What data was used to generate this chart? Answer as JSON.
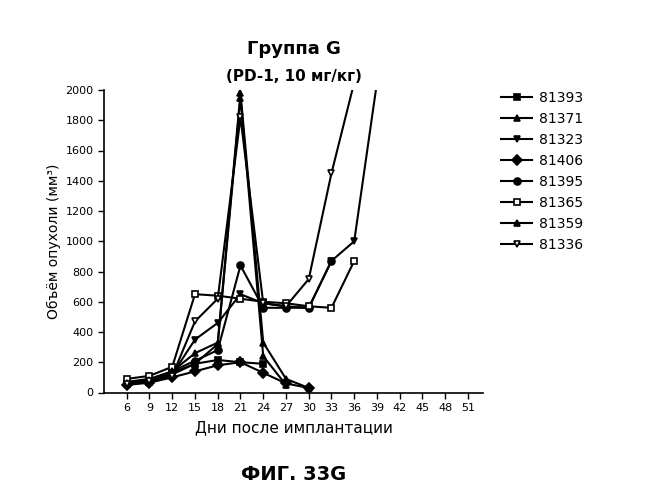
{
  "title_line1": "Группа G",
  "title_line2": "(PD-1, 10 мг/кг)",
  "xlabel": "Дни после имплантации",
  "ylabel": "Объём опухоли (мм³)",
  "caption": "ФИГ. 33G",
  "xticks": [
    6,
    9,
    12,
    15,
    18,
    21,
    24,
    27,
    30,
    33,
    36,
    39,
    42,
    45,
    48,
    51
  ],
  "ylim": [
    0,
    2000
  ],
  "yticks": [
    0,
    200,
    400,
    600,
    800,
    1000,
    1200,
    1400,
    1600,
    1800,
    2000
  ],
  "series": [
    {
      "label": "81393",
      "marker": "s",
      "fillstyle": "full",
      "x": [
        6,
        9,
        12,
        15,
        18,
        21,
        24
      ],
      "y": [
        55,
        70,
        120,
        190,
        215,
        200,
        190
      ]
    },
    {
      "label": "81371",
      "marker": "^",
      "fillstyle": "full",
      "x": [
        6,
        9,
        12,
        15,
        18,
        21,
        24,
        27
      ],
      "y": [
        60,
        80,
        130,
        190,
        320,
        1950,
        240,
        50
      ]
    },
    {
      "label": "81323",
      "marker": "v",
      "fillstyle": "full",
      "x": [
        6,
        9,
        12,
        15,
        18,
        21,
        24,
        27,
        30,
        33,
        36,
        39
      ],
      "y": [
        65,
        85,
        120,
        350,
        460,
        650,
        590,
        570,
        560,
        870,
        1000,
        2050
      ]
    },
    {
      "label": "81406",
      "marker": "D",
      "fillstyle": "full",
      "x": [
        6,
        9,
        12,
        15,
        18,
        21,
        24,
        27,
        30
      ],
      "y": [
        50,
        65,
        100,
        140,
        180,
        200,
        130,
        60,
        30
      ]
    },
    {
      "label": "81395",
      "marker": "o",
      "fillstyle": "full",
      "x": [
        6,
        9,
        12,
        15,
        18,
        21,
        24,
        27,
        30,
        33
      ],
      "y": [
        70,
        90,
        140,
        210,
        280,
        840,
        560,
        560,
        560,
        870
      ]
    },
    {
      "label": "81365",
      "marker": "s",
      "fillstyle": "none",
      "x": [
        6,
        9,
        12,
        15,
        18,
        21,
        24,
        27,
        30,
        33,
        36
      ],
      "y": [
        90,
        110,
        170,
        650,
        640,
        620,
        600,
        590,
        570,
        560,
        870
      ]
    },
    {
      "label": "81359",
      "marker": "^",
      "fillstyle": "full",
      "x": [
        6,
        9,
        12,
        15,
        18,
        21,
        24,
        27,
        30
      ],
      "y": [
        65,
        85,
        140,
        260,
        330,
        1980,
        330,
        90,
        30
      ]
    },
    {
      "label": "81336",
      "marker": "v",
      "fillstyle": "none",
      "x": [
        6,
        9,
        12,
        15,
        18,
        21,
        24,
        27,
        30,
        33,
        36,
        39,
        42
      ],
      "y": [
        55,
        75,
        110,
        470,
        620,
        1820,
        590,
        570,
        750,
        1450,
        2050,
        2050,
        2050
      ]
    }
  ]
}
